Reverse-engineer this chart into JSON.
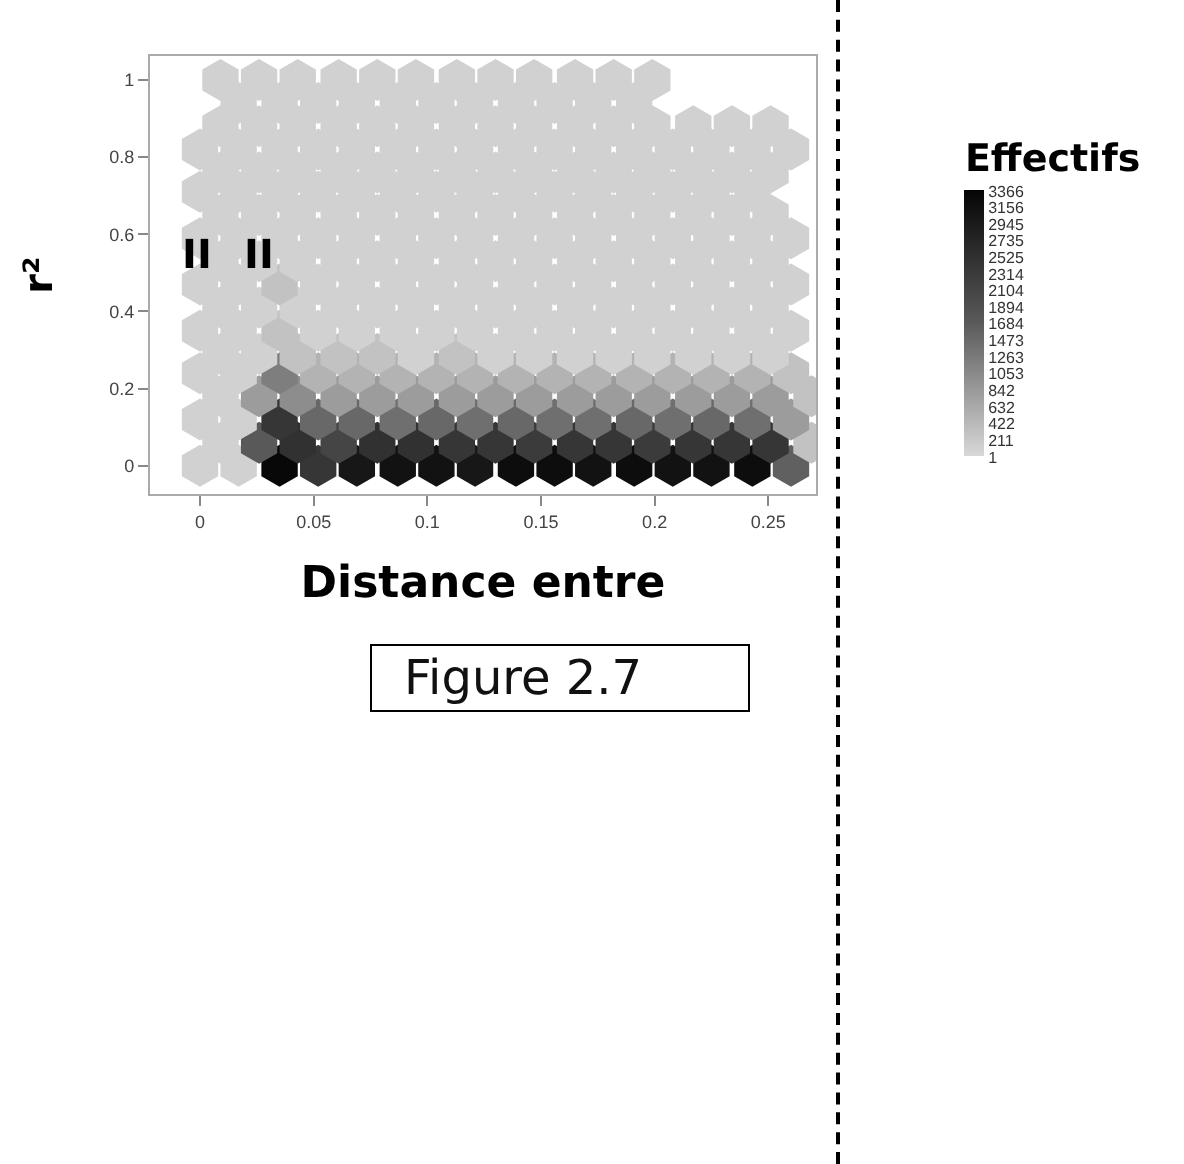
{
  "chart_data": {
    "type": "scatter",
    "xlabel": "Distance entre",
    "ylabel": "r²",
    "clabel": "Effectifs",
    "annotations": [
      "II",
      "II",
      "Figure 2.7"
    ],
    "xlim": [
      -0.022,
      0.271
    ],
    "ylim": [
      -0.073,
      1.062
    ],
    "xticks": [
      0,
      0.05,
      0.1,
      0.15,
      0.2,
      0.25
    ],
    "yticks": [
      0,
      0.2,
      0.4,
      0.6,
      0.8,
      1
    ],
    "clim": [
      1,
      3366
    ],
    "cticks": [
      1,
      211,
      422,
      632,
      842,
      1053,
      1263,
      1473,
      1684,
      1894,
      2104,
      2314,
      2525,
      2735,
      2945,
      3156,
      3366
    ],
    "x": [
      0,
      0.017,
      0.035,
      0.052,
      0.069,
      0.087,
      0.104,
      0.121,
      0.139,
      0.156,
      0.173,
      0.191,
      0.208,
      0.225,
      0.243,
      0.26,
      0.009,
      0.026,
      0.043,
      0.061,
      0.078,
      0.095,
      0.113,
      0.13,
      0.147,
      0.165,
      0.182,
      0.199,
      0.217,
      0.234,
      0.251,
      0.269,
      0,
      0.017,
      0.035,
      0.052,
      0.069,
      0.087,
      0.104,
      0.121,
      0.139,
      0.156,
      0.173,
      0.191,
      0.208,
      0.225,
      0.243,
      0.26,
      0.009,
      0.026,
      0.043,
      0.061,
      0.078,
      0.095,
      0.113,
      0.13,
      0.147,
      0.165,
      0.182,
      0.199,
      0.217,
      0.234,
      0.251,
      0.269,
      0,
      0.017,
      0.035,
      0.052,
      0.069,
      0.087,
      0.104,
      0.121,
      0.139,
      0.156,
      0.173,
      0.191,
      0.208,
      0.225,
      0.243,
      0.26,
      0.009,
      0.026,
      0.043,
      0.061,
      0.078,
      0.095,
      0.113,
      0.13,
      0.147,
      0.165,
      0.182,
      0.199,
      0.217,
      0.234,
      0.251,
      0,
      0.017,
      0.035,
      0.052,
      0.069,
      0.087,
      0.104,
      0.121,
      0.139,
      0.156,
      0.173,
      0.191,
      0.208,
      0.225,
      0.243,
      0.26,
      0.009,
      0.026,
      0.043,
      0.061,
      0.078,
      0.095,
      0.113,
      0.13,
      0.147,
      0.165,
      0.182,
      0.199,
      0.217,
      0.234,
      0.251,
      0,
      0.017,
      0.035,
      0.052,
      0.069,
      0.087,
      0.104,
      0.121,
      0.139,
      0.156,
      0.173,
      0.191,
      0.208,
      0.225,
      0.243,
      0.26,
      0.009,
      0.026,
      0.043,
      0.061,
      0.078,
      0.095,
      0.113,
      0.13,
      0.147,
      0.165,
      0.182,
      0.199,
      0.217,
      0.234,
      0.251,
      0,
      0.017,
      0.035,
      0.052,
      0.069,
      0.087,
      0.104,
      0.121,
      0.139,
      0.156,
      0.173,
      0.191,
      0.208,
      0.225,
      0.243,
      0.26,
      0.009,
      0.026,
      0.043,
      0.061,
      0.078,
      0.095,
      0.113,
      0.13,
      0.147,
      0.165,
      0.182,
      0.199,
      0.217,
      0.234,
      0.251,
      0,
      0.017,
      0.035,
      0.052,
      0.069,
      0.087,
      0.104,
      0.121,
      0.139,
      0.156,
      0.173,
      0.191,
      0.208,
      0.225,
      0.243,
      0.009,
      0.026,
      0.043,
      0.061,
      0.078,
      0.095,
      0.113,
      0.13,
      0.147,
      0.165,
      0.182,
      0.199,
      0.217,
      0.234,
      0.251,
      0,
      0.017,
      0.035,
      0.052,
      0.069,
      0.087,
      0.104,
      0.121,
      0.139,
      0.156,
      0.173,
      0.191,
      0.208,
      0.225,
      0.243,
      0.26,
      0.009,
      0.026,
      0.043,
      0.061,
      0.078,
      0.095,
      0.113,
      0.13,
      0.147,
      0.165,
      0.182,
      0.199,
      0.217,
      0.234,
      0.251,
      0.017,
      0.035,
      0.052,
      0.069,
      0.087,
      0.104,
      0.121,
      0.139,
      0.156,
      0.173,
      0.191,
      0.009,
      0.026,
      0.043,
      0.061,
      0.078,
      0.095,
      0.113,
      0.13,
      0.147,
      0.165,
      0.182,
      0.199
    ],
    "values": [
      0,
      0,
      0,
      0,
      0,
      0,
      0,
      0,
      0,
      0,
      0,
      0,
      0,
      0,
      0,
      0,
      0.06,
      0.06,
      0.06,
      0.06,
      0.06,
      0.06,
      0.06,
      0.06,
      0.06,
      0.06,
      0.06,
      0.06,
      0.06,
      0.06,
      0.06,
      0.06,
      0.12,
      0.12,
      0.12,
      0.12,
      0.12,
      0.12,
      0.12,
      0.12,
      0.12,
      0.12,
      0.12,
      0.12,
      0.12,
      0.12,
      0.12,
      0.12,
      0.18,
      0.18,
      0.18,
      0.18,
      0.18,
      0.18,
      0.18,
      0.18,
      0.18,
      0.18,
      0.18,
      0.18,
      0.18,
      0.18,
      0.18,
      0.18,
      0.24,
      0.24,
      0.24,
      0.24,
      0.24,
      0.24,
      0.24,
      0.24,
      0.24,
      0.24,
      0.24,
      0.24,
      0.24,
      0.24,
      0.24,
      0.24,
      0.29,
      0.29,
      0.29,
      0.29,
      0.29,
      0.29,
      0.29,
      0.29,
      0.29,
      0.29,
      0.29,
      0.29,
      0.29,
      0.29,
      0.29,
      0.35,
      0.35,
      0.35,
      0.35,
      0.35,
      0.35,
      0.35,
      0.35,
      0.35,
      0.35,
      0.35,
      0.35,
      0.35,
      0.35,
      0.35,
      0.35,
      0.41,
      0.41,
      0.41,
      0.41,
      0.41,
      0.41,
      0.41,
      0.41,
      0.41,
      0.41,
      0.41,
      0.41,
      0.41,
      0.41,
      0.41,
      0.47,
      0.47,
      0.47,
      0.47,
      0.47,
      0.47,
      0.47,
      0.47,
      0.47,
      0.47,
      0.47,
      0.47,
      0.47,
      0.47,
      0.47,
      0.47,
      0.53,
      0.53,
      0.53,
      0.53,
      0.53,
      0.53,
      0.53,
      0.53,
      0.53,
      0.53,
      0.53,
      0.53,
      0.53,
      0.53,
      0.53,
      0.59,
      0.59,
      0.59,
      0.59,
      0.59,
      0.59,
      0.59,
      0.59,
      0.59,
      0.59,
      0.59,
      0.59,
      0.59,
      0.59,
      0.59,
      0.59,
      0.65,
      0.65,
      0.65,
      0.65,
      0.65,
      0.65,
      0.65,
      0.65,
      0.65,
      0.65,
      0.65,
      0.65,
      0.65,
      0.65,
      0.65,
      0.71,
      0.71,
      0.71,
      0.71,
      0.71,
      0.71,
      0.71,
      0.71,
      0.71,
      0.71,
      0.71,
      0.71,
      0.71,
      0.71,
      0.71,
      0.76,
      0.76,
      0.76,
      0.76,
      0.76,
      0.76,
      0.76,
      0.76,
      0.76,
      0.76,
      0.76,
      0.76,
      0.76,
      0.76,
      0.76,
      0.82,
      0.82,
      0.82,
      0.82,
      0.82,
      0.82,
      0.82,
      0.82,
      0.82,
      0.82,
      0.82,
      0.82,
      0.82,
      0.82,
      0.82,
      0.82,
      0.88,
      0.88,
      0.88,
      0.88,
      0.88,
      0.88,
      0.88,
      0.88,
      0.88,
      0.88,
      0.88,
      0.88,
      0.88,
      0.88,
      0.88,
      0.94,
      0.94,
      0.94,
      0.94,
      0.94,
      0.94,
      0.94,
      0.94,
      0.94,
      0.94,
      0.94,
      1,
      1,
      1,
      1,
      1,
      1,
      1,
      1,
      1,
      1,
      1,
      1
    ],
    "cvalues": [
      100,
      100,
      3300,
      2400,
      3000,
      3100,
      3100,
      3000,
      3200,
      3200,
      3100,
      3200,
      3100,
      3100,
      3200,
      1600,
      100,
      1700,
      2500,
      2100,
      2500,
      2500,
      2400,
      2400,
      2300,
      2400,
      2400,
      2300,
      2400,
      2400,
      2400,
      300,
      100,
      100,
      2400,
      1500,
      1500,
      1400,
      1500,
      1400,
      1500,
      1400,
      1400,
      1500,
      1400,
      1500,
      1400,
      800,
      100,
      800,
      1000,
      800,
      800,
      800,
      800,
      800,
      800,
      800,
      800,
      800,
      800,
      800,
      800,
      300,
      100,
      100,
      1200,
      500,
      500,
      500,
      500,
      500,
      500,
      500,
      500,
      500,
      500,
      500,
      500,
      300,
      100,
      100,
      300,
      300,
      300,
      100,
      300,
      100,
      100,
      100,
      100,
      100,
      100,
      100,
      100,
      100,
      100,
      300,
      100,
      100,
      100,
      100,
      100,
      100,
      100,
      100,
      100,
      100,
      100,
      100,
      100,
      100,
      100,
      100,
      100,
      100,
      100,
      100,
      100,
      100,
      100,
      100,
      100,
      100,
      100,
      100,
      100,
      100,
      300,
      100,
      100,
      100,
      100,
      100,
      100,
      100,
      100,
      100,
      100,
      100,
      100,
      100,
      100,
      100,
      100,
      100,
      100,
      100,
      100,
      100,
      100,
      100,
      100,
      100,
      100,
      100,
      100,
      100,
      100,
      100,
      100,
      100,
      100,
      100,
      100,
      100,
      100,
      100,
      100,
      100,
      100,
      100,
      100,
      100,
      100,
      100,
      100,
      100,
      100,
      100,
      100,
      100,
      100,
      100,
      100,
      100,
      100,
      100,
      100,
      100,
      100,
      100,
      100,
      100,
      100,
      100,
      100,
      100,
      100,
      100,
      100,
      100,
      100,
      100,
      100,
      100,
      100,
      100,
      100,
      100,
      100,
      100,
      100,
      100,
      100,
      100,
      100,
      100,
      100,
      100,
      100,
      100,
      100,
      100,
      100,
      100,
      100,
      100,
      100,
      100,
      100,
      100,
      100,
      100,
      100,
      100,
      100,
      100,
      100,
      100,
      100,
      100,
      100,
      100,
      100,
      100,
      100,
      100,
      100,
      100,
      100,
      100,
      100,
      100,
      100,
      100,
      100,
      100,
      100,
      100,
      100,
      100,
      100,
      100,
      100,
      100,
      100,
      100,
      100,
      100,
      100,
      100
    ]
  }
}
